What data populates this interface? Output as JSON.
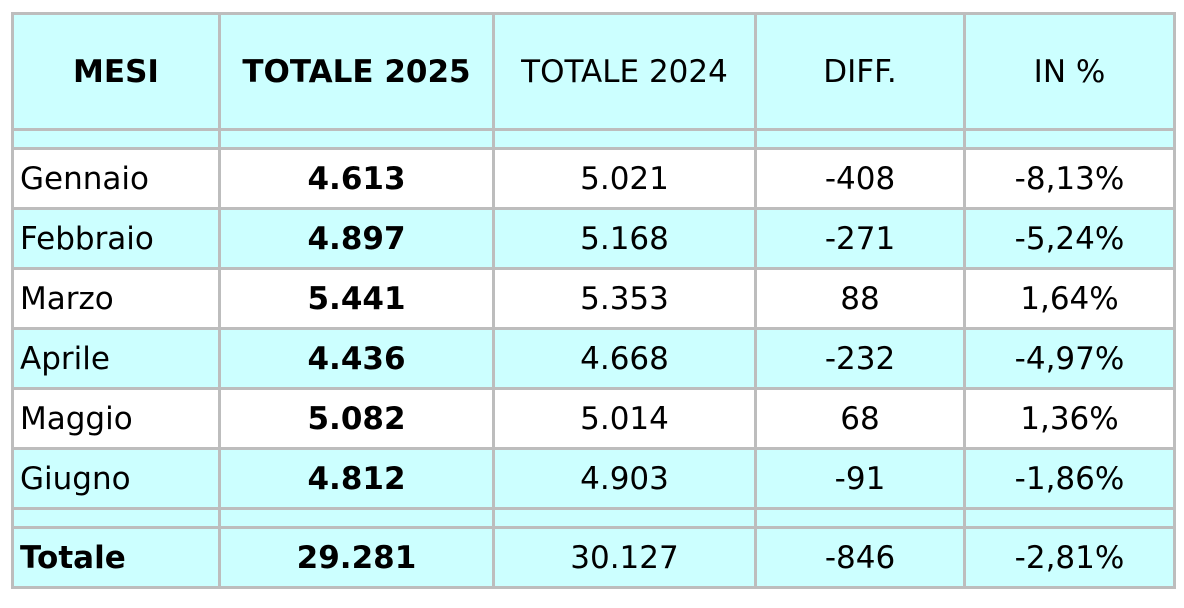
{
  "table": {
    "headers": [
      "MESI",
      "TOTALE 2025",
      "TOTALE 2024",
      "DIFF.",
      "IN %"
    ],
    "rows": [
      {
        "month": "Gennaio",
        "total_2025": "4.613",
        "total_2024": "5.021",
        "diff": "-408",
        "pct": "-8,13%"
      },
      {
        "month": "Febbraio",
        "total_2025": "4.897",
        "total_2024": "5.168",
        "diff": "-271",
        "pct": "-5,24%"
      },
      {
        "month": "Marzo",
        "total_2025": "5.441",
        "total_2024": "5.353",
        "diff": "88",
        "pct": "1,64%"
      },
      {
        "month": "Aprile",
        "total_2025": "4.436",
        "total_2024": "4.668",
        "diff": "-232",
        "pct": "-4,97%"
      },
      {
        "month": "Maggio",
        "total_2025": "5.082",
        "total_2024": "5.014",
        "diff": "68",
        "pct": "1,36%"
      },
      {
        "month": "Giugno",
        "total_2025": "4.812",
        "total_2024": "4.903",
        "diff": "-91",
        "pct": "-1,86%"
      }
    ],
    "total": {
      "month": "Totale",
      "total_2025": "29.281",
      "total_2024": "30.127",
      "diff": "-846",
      "pct": "-2,81%"
    }
  },
  "colors": {
    "cyan_fill": "#ccffff",
    "white_fill": "#ffffff",
    "border": "#bdbdbd"
  }
}
